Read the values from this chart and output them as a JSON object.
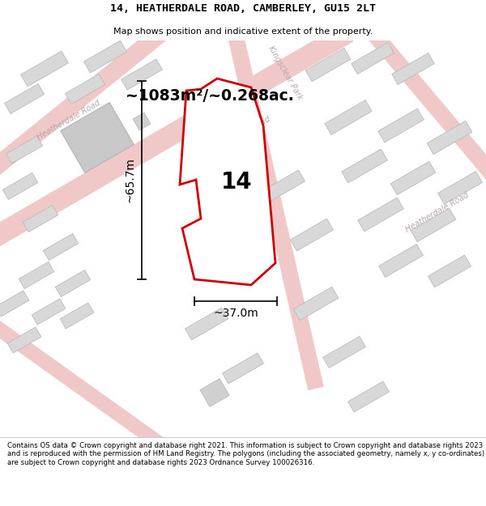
{
  "title": "14, HEATHERDALE ROAD, CAMBERLEY, GU15 2LT",
  "subtitle": "Map shows position and indicative extent of the property.",
  "footer": "Contains OS data © Crown copyright and database right 2021. This information is subject to Crown copyright and database rights 2023 and is reproduced with the permission of HM Land Registry. The polygons (including the associated geometry, namely x, y co-ordinates) are subject to Crown copyright and database rights 2023 Ordnance Survey 100026316.",
  "area_text": "~1083m²/~0.268ac.",
  "width_label": "~37.0m",
  "height_label": "~65.7m",
  "property_number": "14",
  "map_bg": "#f7f0f0",
  "road_color": "#f0c8c8",
  "road_edge": "#e8b0b0",
  "building_color": "#d8d8d8",
  "building_edge": "#bbbbbb",
  "property_fill": "#ffffff",
  "property_edge": "#cc0000",
  "dim_line_color": "#111111",
  "road_label_color": "#aaaaaa"
}
